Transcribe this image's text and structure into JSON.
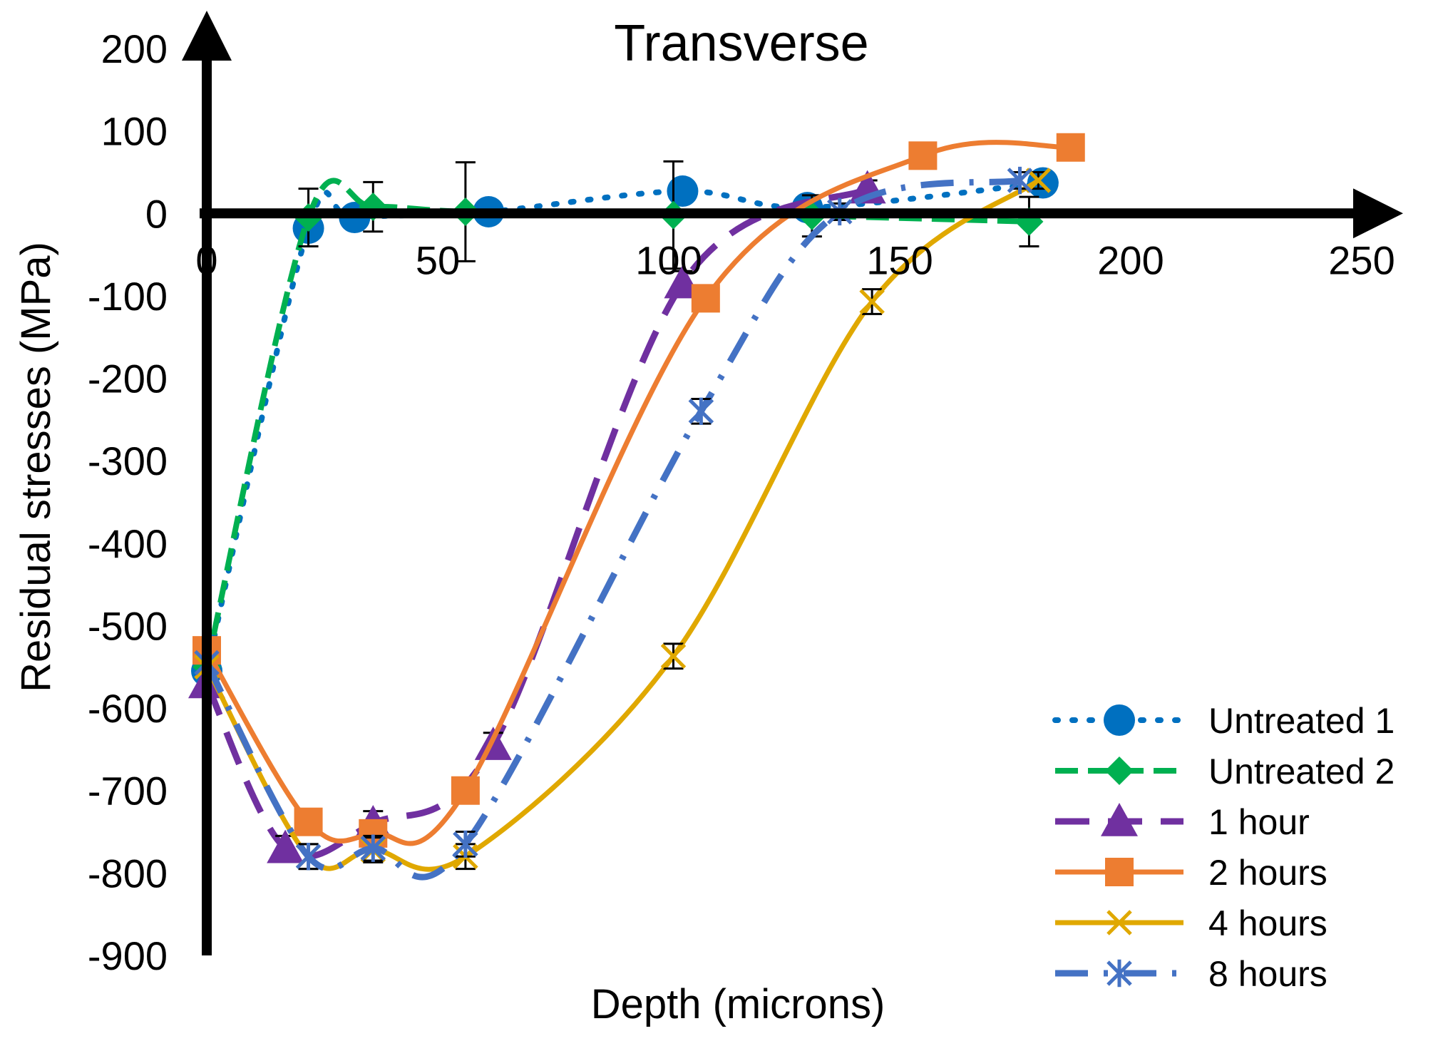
{
  "chart_data": {
    "type": "line",
    "title": "Transverse",
    "xlabel": "Depth (microns)",
    "ylabel": "Residual stresses (MPa)",
    "xlim": [
      0,
      250
    ],
    "ylim": [
      -900,
      200
    ],
    "xticks": [
      0,
      50,
      100,
      150,
      200,
      250
    ],
    "yticks": [
      200,
      100,
      0,
      -100,
      -200,
      -300,
      -400,
      -500,
      -600,
      -700,
      -800,
      -900
    ],
    "grid": false,
    "legend_position": "bottom-right",
    "series": [
      {
        "name": "Untreated 1",
        "color": "#0070C0",
        "line_style": "dotted",
        "marker": "circle",
        "smooth": true,
        "x": [
          0,
          22,
          32,
          61,
          103,
          130,
          181
        ],
        "y": [
          -555,
          -18,
          -5,
          2,
          27,
          7,
          37
        ],
        "error_bars": false
      },
      {
        "name": "Untreated 2",
        "color": "#00B050",
        "line_style": "dashed",
        "marker": "diamond",
        "smooth": true,
        "x": [
          0,
          22,
          36,
          56,
          101,
          131,
          178
        ],
        "y": [
          -550,
          -5,
          8,
          2,
          -2,
          -3,
          -10
        ],
        "error_bar": [
          0,
          35,
          30,
          60,
          65,
          25,
          30
        ]
      },
      {
        "name": "1 hour",
        "color": "#7030A0",
        "line_style": "long-dash",
        "marker": "triangle",
        "smooth": true,
        "x": [
          0,
          17,
          36,
          62,
          103,
          143
        ],
        "y": [
          -570,
          -770,
          -740,
          -645,
          -85,
          30
        ],
        "error_bar": [
          0,
          15,
          15,
          15,
          15,
          10
        ]
      },
      {
        "name": "2 hours",
        "color": "#ED7D31",
        "line_style": "solid",
        "marker": "square",
        "smooth": true,
        "x": [
          0,
          22,
          36,
          56,
          108,
          155,
          187
        ],
        "y": [
          -530,
          -738,
          -752,
          -700,
          -103,
          70,
          80
        ],
        "error_bars": false
      },
      {
        "name": "4 hours",
        "color": "#E0A800",
        "line_style": "solid",
        "marker": "x",
        "smooth": true,
        "x": [
          0,
          22,
          36,
          56,
          101,
          144,
          180
        ],
        "y": [
          -550,
          -780,
          -772,
          -780,
          -537,
          -107,
          40
        ],
        "error_bar": [
          0,
          15,
          15,
          15,
          15,
          15,
          10
        ]
      },
      {
        "name": "8 hours",
        "color": "#4472C4",
        "line_style": "dash-dot",
        "marker": "asterisk",
        "smooth": true,
        "x": [
          0,
          22,
          36,
          56,
          107,
          137,
          176
        ],
        "y": [
          -545,
          -780,
          -770,
          -765,
          -240,
          2,
          40
        ],
        "error_bar": [
          0,
          15,
          15,
          15,
          15,
          10,
          10
        ]
      }
    ]
  }
}
